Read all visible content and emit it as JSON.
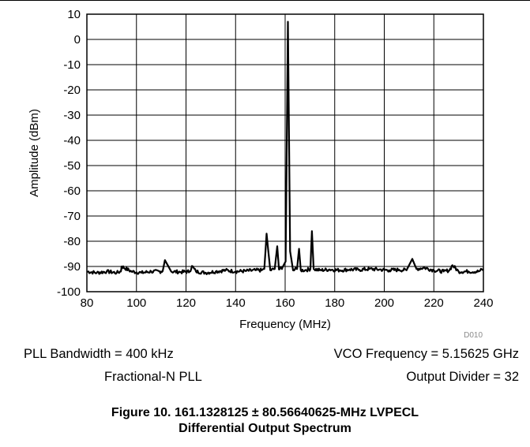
{
  "chart_data": {
    "type": "line",
    "xlabel": "Frequency (MHz)",
    "ylabel": "Amplitude (dBm)",
    "xlim": [
      80,
      240
    ],
    "ylim": [
      -100,
      10
    ],
    "xticks": [
      80,
      100,
      120,
      140,
      160,
      180,
      200,
      220,
      240
    ],
    "yticks": [
      10,
      0,
      -10,
      -20,
      -30,
      -40,
      -50,
      -60,
      -70,
      -80,
      -90,
      -100
    ],
    "grid": true,
    "code_label": "D010",
    "series": [
      {
        "noise_floor": -92,
        "x": [
          80,
          84,
          88,
          92,
          93.7,
          94,
          98,
          102,
          106,
          110,
          110.6,
          111.5,
          114,
          118,
          121.5,
          122.4,
          124,
          128,
          132,
          136,
          140,
          144,
          148,
          150.5,
          151.6,
          152.5,
          154,
          155.8,
          156.8,
          157.5,
          159,
          160.2,
          161.13,
          162.0,
          163.2,
          164.8,
          165.6,
          166.3,
          168,
          170.2,
          170.8,
          171.5,
          174,
          178,
          182,
          186,
          190,
          194,
          198,
          202,
          206,
          209,
          211.3,
          213,
          216,
          220,
          224,
          226.3,
          227.5,
          230,
          234,
          238,
          240
        ],
        "y": [
          -92,
          -92.5,
          -92,
          -92.5,
          -92,
          -90,
          -92,
          -92.5,
          -92,
          -92,
          -91.8,
          -87.5,
          -92,
          -92.2,
          -92,
          -89.8,
          -92,
          -92.5,
          -92,
          -91.5,
          -92,
          -91.8,
          -91.5,
          -91.5,
          -91,
          -77,
          -91.5,
          -91,
          -82,
          -91.2,
          -90.2,
          -88,
          7,
          -84,
          -91.5,
          -91,
          -83,
          -91.5,
          -91.5,
          -91,
          -76,
          -91,
          -91.5,
          -91.2,
          -91.5,
          -91.2,
          -91.3,
          -91,
          -91.2,
          -91.5,
          -91.3,
          -91.5,
          -87,
          -91,
          -90.5,
          -91.5,
          -92,
          -91.5,
          -89.5,
          -92,
          -92,
          -92,
          -91
        ]
      }
    ]
  },
  "notes": {
    "pll_bandwidth": "PLL Bandwidth = 400 kHz",
    "vco_frequency": "VCO Frequency = 5.15625 GHz",
    "pll_type": "Fractional-N PLL",
    "output_divider": "Output Divider = 32"
  },
  "caption": {
    "line1": "Figure 10. 161.1328125 ± 80.56640625-MHz LVPECL",
    "line2": "Differential Output Spectrum"
  }
}
